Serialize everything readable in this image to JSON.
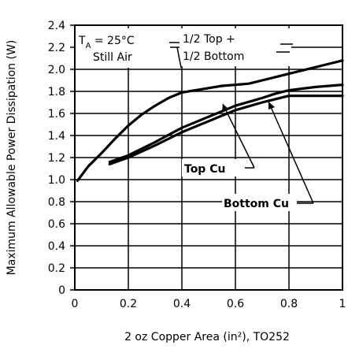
{
  "chart_data": {
    "type": "line",
    "title": "",
    "xlabel": "2 oz Copper Area (in²), TO252",
    "ylabel": "Maximum Allowable Power Dissipation (W)",
    "xlim": [
      0,
      1
    ],
    "ylim": [
      0,
      2.4
    ],
    "x_ticks": [
      "0",
      "0.2",
      "0.4",
      "0.6",
      "0.8",
      "1"
    ],
    "y_ticks": [
      "0",
      "0.2",
      "0.4",
      "0.6",
      "0.8",
      "1.0",
      "1.2",
      "1.4",
      "1.6",
      "1.8",
      "2.0",
      "2.2",
      "2.4"
    ],
    "grid": true,
    "series": [
      {
        "name": "1/2 Top + 1/2 Bottom",
        "x": [
          0.01,
          0.05,
          0.1,
          0.15,
          0.2,
          0.25,
          0.3,
          0.35,
          0.4,
          0.45,
          0.5,
          0.55,
          0.6,
          0.65,
          0.7,
          0.75,
          0.8,
          0.85,
          0.9,
          0.95,
          1.0
        ],
        "values": [
          0.99,
          1.12,
          1.24,
          1.37,
          1.49,
          1.59,
          1.67,
          1.74,
          1.79,
          1.81,
          1.83,
          1.85,
          1.86,
          1.87,
          1.9,
          1.93,
          1.96,
          1.99,
          2.02,
          2.05,
          2.08
        ]
      },
      {
        "name": "Top Cu",
        "x": [
          0.13,
          0.2,
          0.3,
          0.4,
          0.5,
          0.6,
          0.7,
          0.75,
          0.8,
          0.9,
          1.0
        ],
        "values": [
          1.16,
          1.22,
          1.34,
          1.47,
          1.57,
          1.67,
          1.74,
          1.78,
          1.81,
          1.84,
          1.86
        ]
      },
      {
        "name": "Bottom Cu",
        "x": [
          0.13,
          0.2,
          0.3,
          0.4,
          0.5,
          0.6,
          0.7,
          0.75,
          0.8,
          0.9,
          1.0
        ],
        "values": [
          1.14,
          1.2,
          1.31,
          1.43,
          1.53,
          1.63,
          1.7,
          1.73,
          1.76,
          1.76,
          1.76
        ]
      }
    ],
    "annotations": {
      "condition_line1_prefix": "T",
      "condition_line1_sub": "A",
      "condition_line1_suffix": " = 25°C",
      "condition_line2": "Still Air",
      "half_line1": "1/2 Top +",
      "half_line2": "1/2 Bottom",
      "top_cu": "Top Cu",
      "bottom_cu": "Bottom Cu"
    }
  }
}
